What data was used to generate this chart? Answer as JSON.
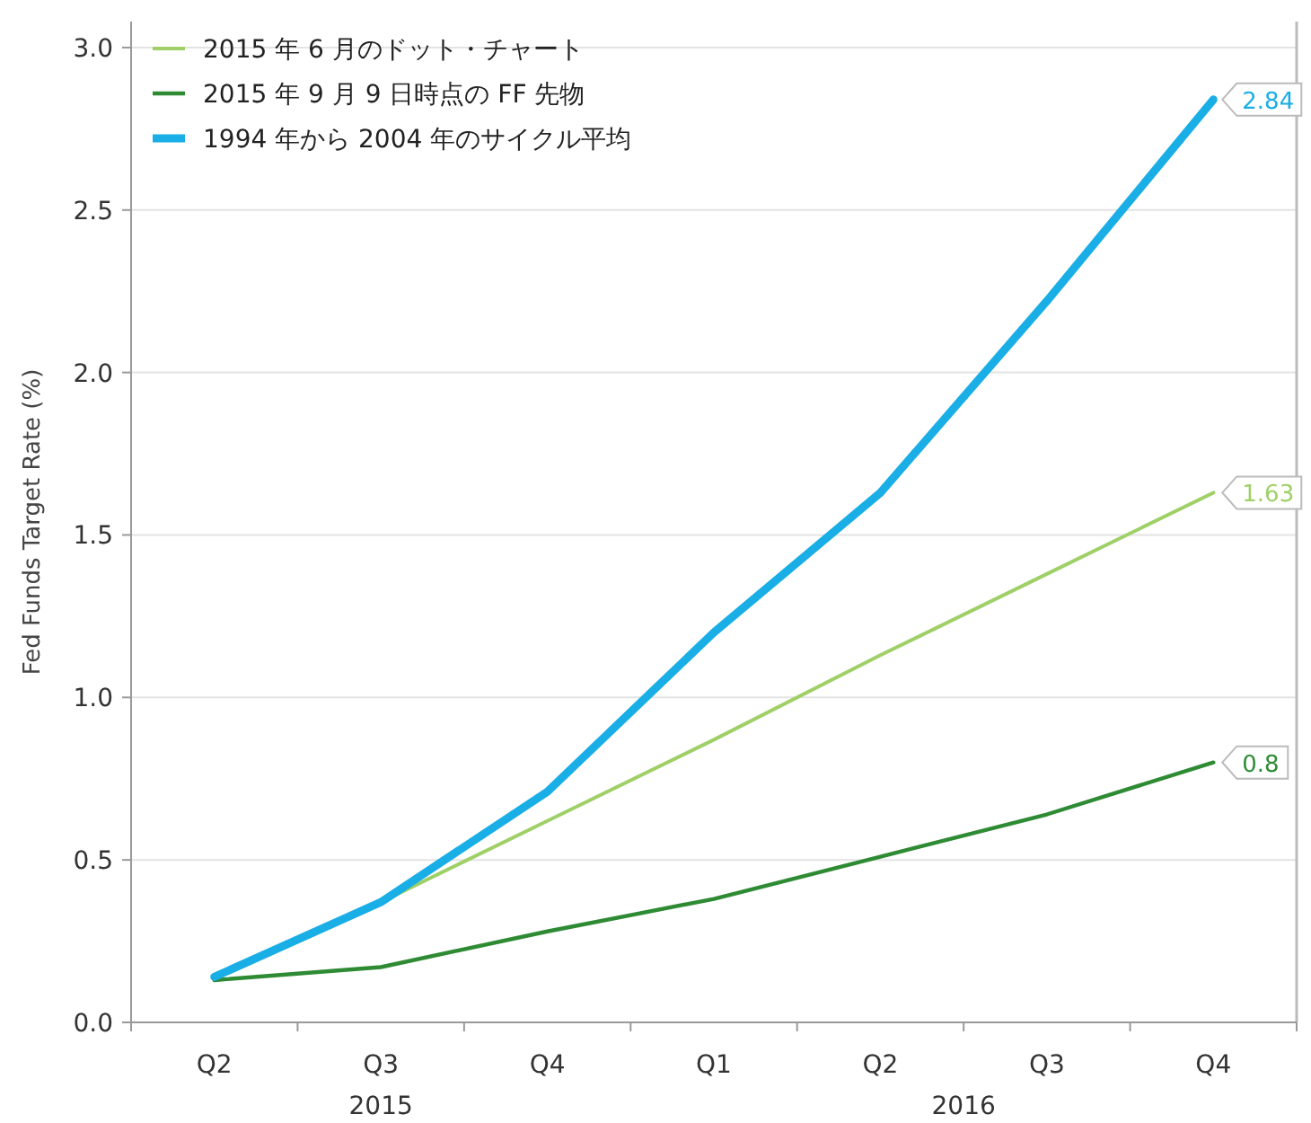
{
  "chart_data": {
    "type": "line",
    "ylabel": "Fed Funds Target Rate (%)",
    "categories": [
      "Q2",
      "Q3",
      "Q4",
      "Q1",
      "Q2",
      "Q3",
      "Q4"
    ],
    "series": [
      {
        "name": "2015 年 6 月のドット・チャート",
        "color": "#9fd067",
        "values": [
          0.14,
          0.37,
          0.62,
          0.87,
          1.13,
          1.38,
          1.63
        ],
        "value_labels": [
          null,
          null,
          null,
          null,
          null,
          null,
          "1.63"
        ]
      },
      {
        "name": "2015 年 9 月 9 日時点の FF 先物",
        "color": "#2e8b34",
        "values": [
          0.13,
          0.17,
          0.28,
          0.38,
          0.51,
          0.64,
          0.8
        ],
        "value_labels": [
          null,
          null,
          null,
          null,
          null,
          null,
          "0.8"
        ]
      },
      {
        "name": "1994 年から 2004 年のサイクル平均",
        "color": "#1aaee6",
        "values": [
          0.14,
          0.37,
          0.71,
          1.2,
          1.63,
          2.22,
          2.84
        ],
        "value_labels": [
          null,
          null,
          null,
          null,
          null,
          null,
          "2.84"
        ]
      }
    ],
    "annotations": [
      "2015",
      "2016"
    ],
    "ylim": [
      0,
      3.08
    ],
    "yticks": [
      {
        "value": 0,
        "label": "0.0"
      },
      {
        "value": 0.5,
        "label": "0.5"
      },
      {
        "value": 1,
        "label": "1.0"
      },
      {
        "value": 1.5,
        "label": "1.5"
      },
      {
        "value": 2,
        "label": "2.0"
      },
      {
        "value": 2.5,
        "label": "2.5"
      },
      {
        "value": 3,
        "label": "3.0"
      }
    ],
    "grid": "y",
    "legend": "top left",
    "marker": "none",
    "line_style": "solid"
  }
}
